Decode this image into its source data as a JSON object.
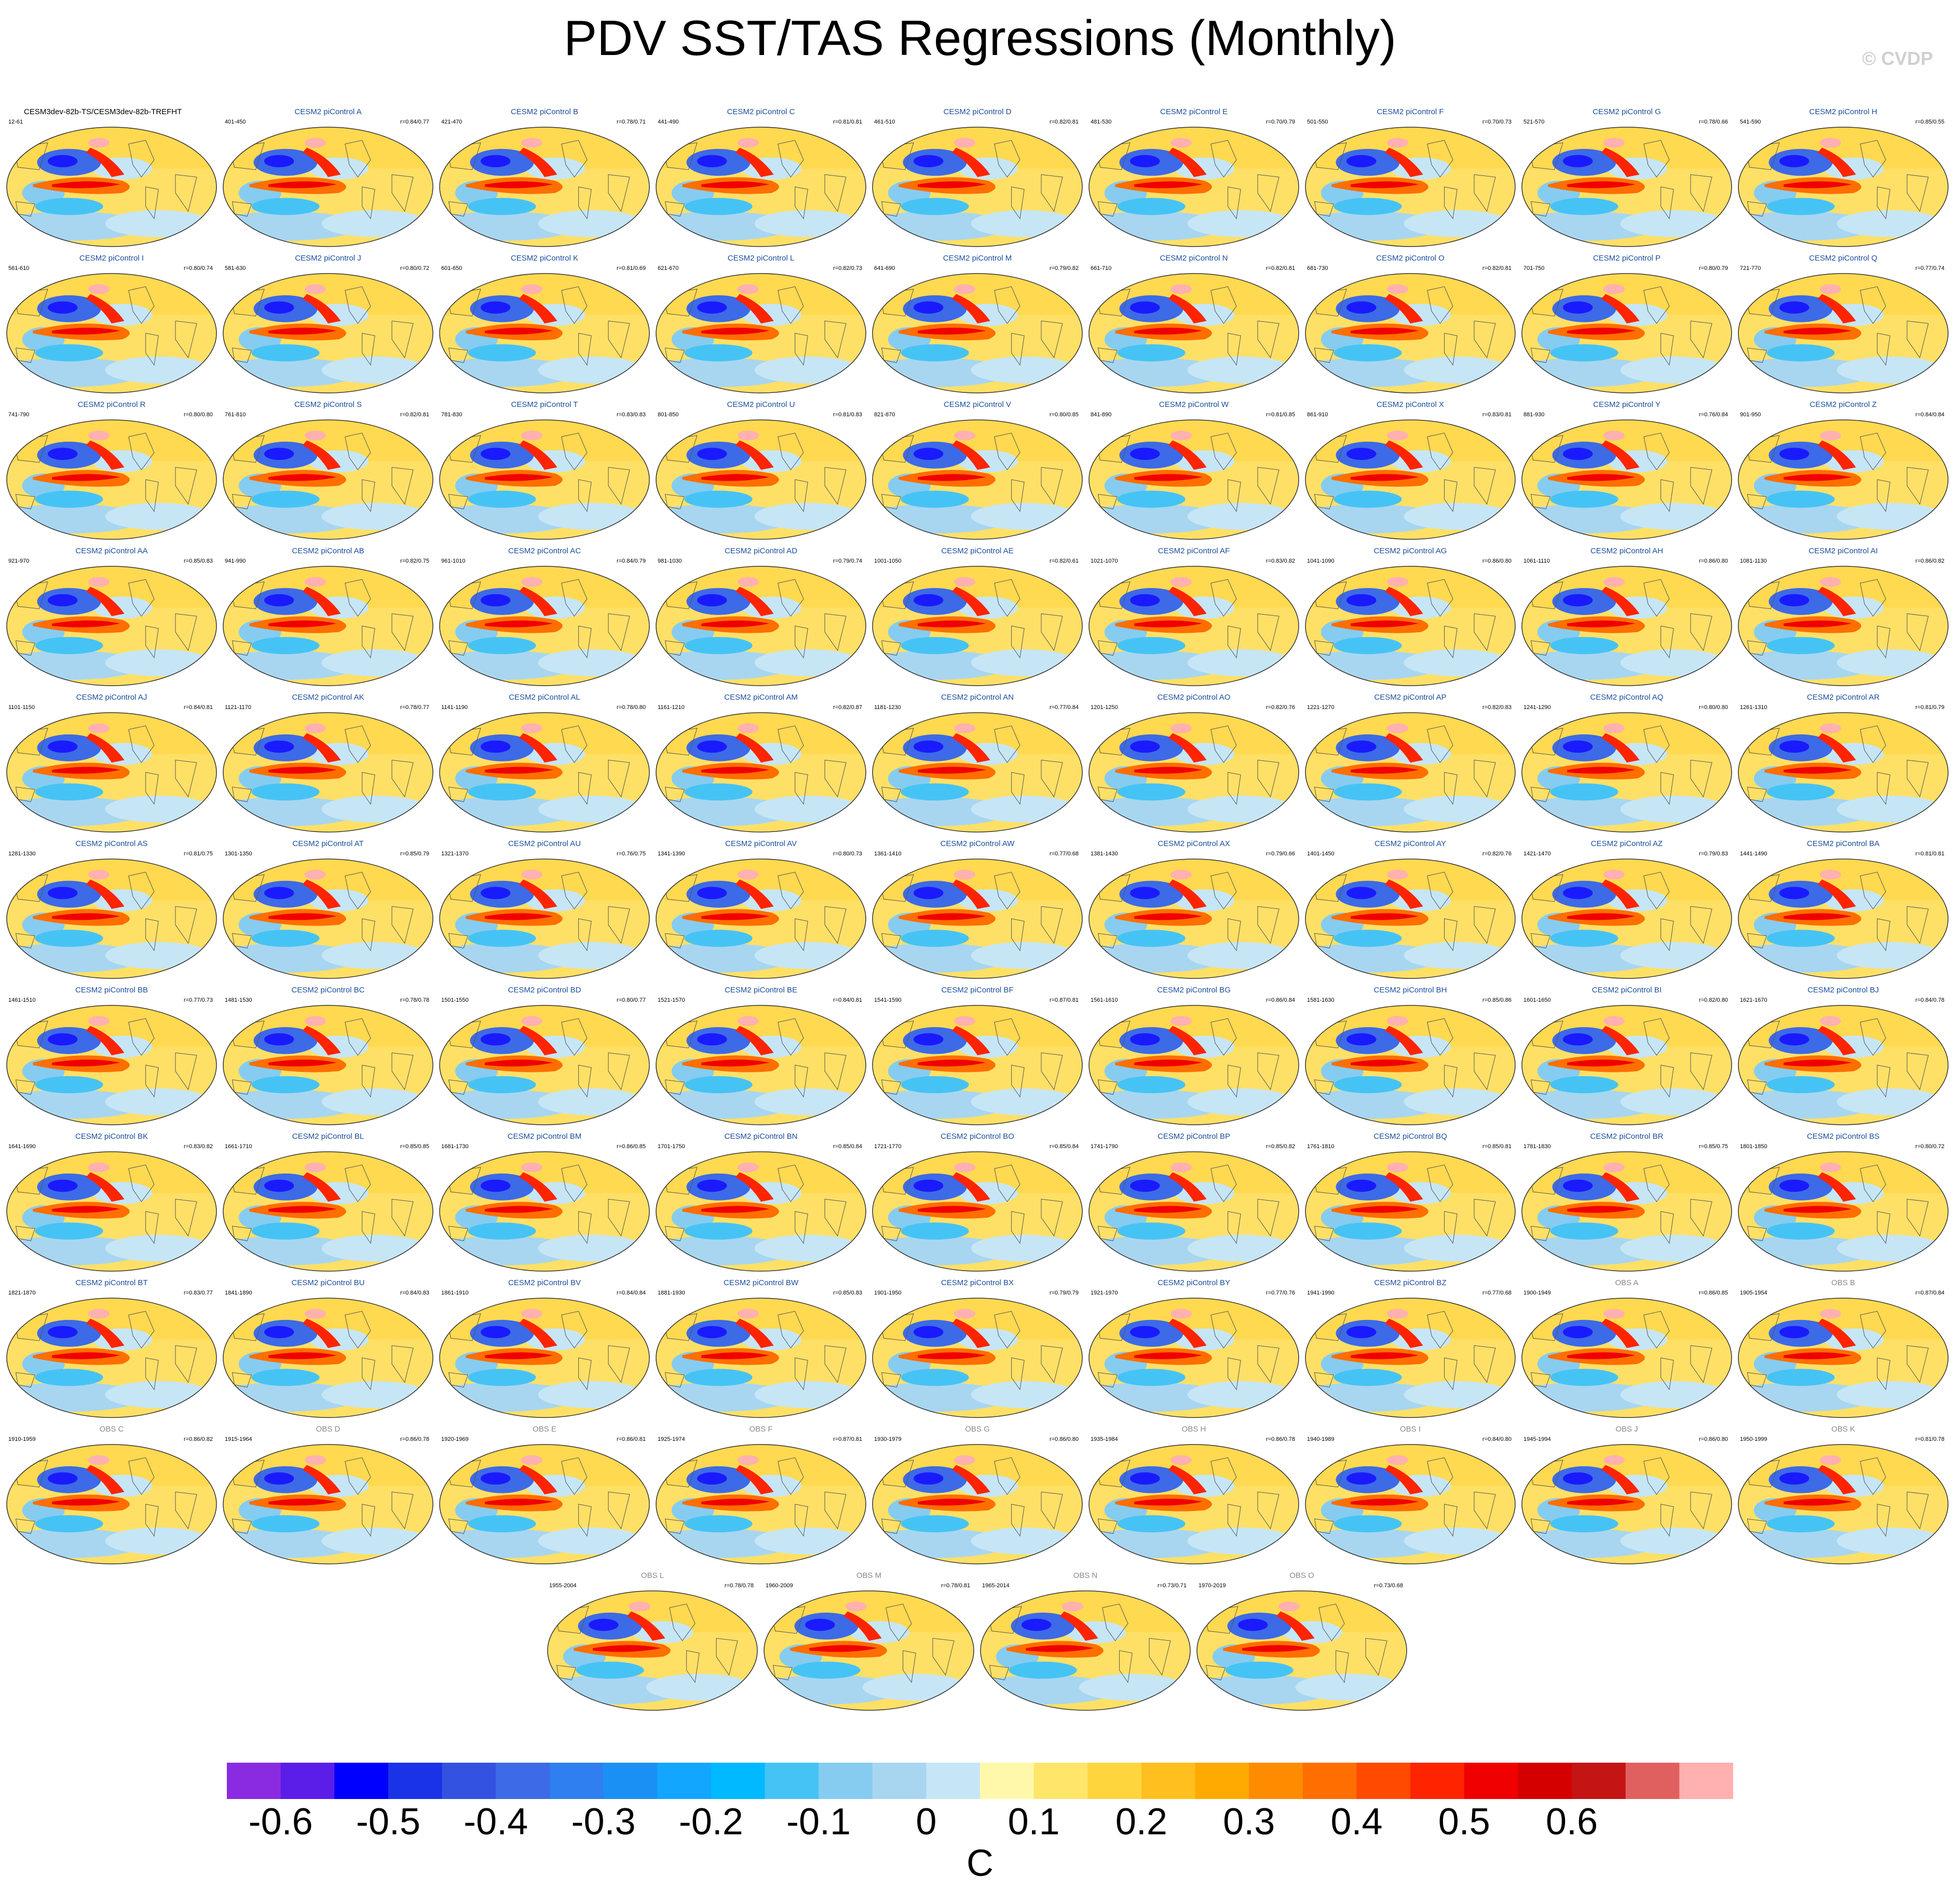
{
  "title": "PDV SST/TAS Regressions (Monthly)",
  "watermark": "© CVDP",
  "units": "C",
  "colorbar": {
    "colors": [
      "#8a2be2",
      "#5a1ee8",
      "#0000ff",
      "#1a33e6",
      "#3352e0",
      "#3d6ae6",
      "#2f7ff0",
      "#1a90f5",
      "#12a6ff",
      "#00b9ff",
      "#46c3f5",
      "#86ccf0",
      "#a8d6f0",
      "#c6e6f6",
      "#fff8aa",
      "#ffe66b",
      "#ffd53e",
      "#ffbf1e",
      "#ffaa00",
      "#ff8c00",
      "#ff6e00",
      "#ff4a00",
      "#ff2400",
      "#f00000",
      "#d40000",
      "#c41414",
      "#e06060",
      "#ffb0b0"
    ],
    "ticks": [
      "-0.6",
      "-0.5",
      "-0.4",
      "-0.3",
      "-0.2",
      "-0.1",
      "0",
      "0.1",
      "0.2",
      "0.3",
      "0.4",
      "0.5",
      "0.6"
    ]
  },
  "panels": [
    {
      "title": "CESM3dev-82b-TS/CESM3dev-82b-TREFHT",
      "years": "12-61",
      "corr": ""
    },
    {
      "title": "CESM2 piControl A",
      "years": "401-450",
      "corr": "r=0.84/0.77"
    },
    {
      "title": "CESM2 piControl B",
      "years": "421-470",
      "corr": "r=0.78/0.71"
    },
    {
      "title": "CESM2 piControl C",
      "years": "441-490",
      "corr": "r=0.81/0.81"
    },
    {
      "title": "CESM2 piControl D",
      "years": "461-510",
      "corr": "r=0.82/0.81"
    },
    {
      "title": "CESM2 piControl E",
      "years": "481-530",
      "corr": "r=0.70/0.79"
    },
    {
      "title": "CESM2 piControl F",
      "years": "501-550",
      "corr": "r=0.70/0.73"
    },
    {
      "title": "CESM2 piControl G",
      "years": "521-570",
      "corr": "r=0.78/0.66"
    },
    {
      "title": "CESM2 piControl H",
      "years": "541-590",
      "corr": "r=0.85/0.55"
    },
    {
      "title": "CESM2 piControl I",
      "years": "561-610",
      "corr": "r=0.80/0.74"
    },
    {
      "title": "CESM2 piControl J",
      "years": "581-630",
      "corr": "r=0.80/0.72"
    },
    {
      "title": "CESM2 piControl K",
      "years": "601-650",
      "corr": "r=0.81/0.69"
    },
    {
      "title": "CESM2 piControl L",
      "years": "621-670",
      "corr": "r=0.82/0.73"
    },
    {
      "title": "CESM2 piControl M",
      "years": "641-690",
      "corr": "r=0.79/0.82"
    },
    {
      "title": "CESM2 piControl N",
      "years": "661-710",
      "corr": "r=0.82/0.81"
    },
    {
      "title": "CESM2 piControl O",
      "years": "681-730",
      "corr": "r=0.82/0.81"
    },
    {
      "title": "CESM2 piControl P",
      "years": "701-750",
      "corr": "r=0.80/0.79"
    },
    {
      "title": "CESM2 piControl Q",
      "years": "721-770",
      "corr": "r=0.77/0.74"
    },
    {
      "title": "CESM2 piControl R",
      "years": "741-790",
      "corr": "r=0.80/0.80"
    },
    {
      "title": "CESM2 piControl S",
      "years": "761-810",
      "corr": "r=0.82/0.81"
    },
    {
      "title": "CESM2 piControl T",
      "years": "781-830",
      "corr": "r=0.83/0.83"
    },
    {
      "title": "CESM2 piControl U",
      "years": "801-850",
      "corr": "r=0.81/0.83"
    },
    {
      "title": "CESM2 piControl V",
      "years": "821-870",
      "corr": "r=0.80/0.85"
    },
    {
      "title": "CESM2 piControl W",
      "years": "841-890",
      "corr": "r=0.81/0.85"
    },
    {
      "title": "CESM2 piControl X",
      "years": "861-910",
      "corr": "r=0.83/0.81"
    },
    {
      "title": "CESM2 piControl Y",
      "years": "881-930",
      "corr": "r=0.76/0.84"
    },
    {
      "title": "CESM2 piControl Z",
      "years": "901-950",
      "corr": "r=0.84/0.84"
    },
    {
      "title": "CESM2 piControl AA",
      "years": "921-970",
      "corr": "r=0.85/0.83"
    },
    {
      "title": "CESM2 piControl AB",
      "years": "941-990",
      "corr": "r=0.82/0.75"
    },
    {
      "title": "CESM2 piControl AC",
      "years": "961-1010",
      "corr": "r=0.84/0.79"
    },
    {
      "title": "CESM2 piControl AD",
      "years": "981-1030",
      "corr": "r=0.79/0.74"
    },
    {
      "title": "CESM2 piControl AE",
      "years": "1001-1050",
      "corr": "r=0.82/0.61"
    },
    {
      "title": "CESM2 piControl AF",
      "years": "1021-1070",
      "corr": "r=0.83/0.82"
    },
    {
      "title": "CESM2 piControl AG",
      "years": "1041-1090",
      "corr": "r=0.86/0.80"
    },
    {
      "title": "CESM2 piControl AH",
      "years": "1061-1110",
      "corr": "r=0.86/0.80"
    },
    {
      "title": "CESM2 piControl AI",
      "years": "1081-1130",
      "corr": "r=0.86/0.82"
    },
    {
      "title": "CESM2 piControl AJ",
      "years": "1101-1150",
      "corr": "r=0.84/0.81"
    },
    {
      "title": "CESM2 piControl AK",
      "years": "1121-1170",
      "corr": "r=0.78/0.77"
    },
    {
      "title": "CESM2 piControl AL",
      "years": "1141-1190",
      "corr": "r=0.78/0.80"
    },
    {
      "title": "CESM2 piControl AM",
      "years": "1161-1210",
      "corr": "r=0.82/0.87"
    },
    {
      "title": "CESM2 piControl AN",
      "years": "1181-1230",
      "corr": "r=0.77/0.84"
    },
    {
      "title": "CESM2 piControl AO",
      "years": "1201-1250",
      "corr": "r=0.82/0.76"
    },
    {
      "title": "CESM2 piControl AP",
      "years": "1221-1270",
      "corr": "r=0.82/0.83"
    },
    {
      "title": "CESM2 piControl AQ",
      "years": "1241-1290",
      "corr": "r=0.80/0.80"
    },
    {
      "title": "CESM2 piControl AR",
      "years": "1261-1310",
      "corr": "r=0.81/0.79"
    },
    {
      "title": "CESM2 piControl AS",
      "years": "1281-1330",
      "corr": "r=0.81/0.75"
    },
    {
      "title": "CESM2 piControl AT",
      "years": "1301-1350",
      "corr": "r=0.85/0.79"
    },
    {
      "title": "CESM2 piControl AU",
      "years": "1321-1370",
      "corr": "r=0.76/0.75"
    },
    {
      "title": "CESM2 piControl AV",
      "years": "1341-1390",
      "corr": "r=0.80/0.73"
    },
    {
      "title": "CESM2 piControl AW",
      "years": "1361-1410",
      "corr": "r=0.77/0.68"
    },
    {
      "title": "CESM2 piControl AX",
      "years": "1381-1430",
      "corr": "r=0.79/0.66"
    },
    {
      "title": "CESM2 piControl AY",
      "years": "1401-1450",
      "corr": "r=0.82/0.76"
    },
    {
      "title": "CESM2 piControl AZ",
      "years": "1421-1470",
      "corr": "r=0.79/0.83"
    },
    {
      "title": "CESM2 piControl BA",
      "years": "1441-1490",
      "corr": "r=0.81/0.81"
    },
    {
      "title": "CESM2 piControl BB",
      "years": "1461-1510",
      "corr": "r=0.77/0.73"
    },
    {
      "title": "CESM2 piControl BC",
      "years": "1481-1530",
      "corr": "r=0.78/0.78"
    },
    {
      "title": "CESM2 piControl BD",
      "years": "1501-1550",
      "corr": "r=0.80/0.77"
    },
    {
      "title": "CESM2 piControl BE",
      "years": "1521-1570",
      "corr": "r=0.84/0.81"
    },
    {
      "title": "CESM2 piControl BF",
      "years": "1541-1590",
      "corr": "r=0.87/0.81"
    },
    {
      "title": "CESM2 piControl BG",
      "years": "1561-1610",
      "corr": "r=0.86/0.84"
    },
    {
      "title": "CESM2 piControl BH",
      "years": "1581-1630",
      "corr": "r=0.85/0.86"
    },
    {
      "title": "CESM2 piControl BI",
      "years": "1601-1650",
      "corr": "r=0.82/0.80"
    },
    {
      "title": "CESM2 piControl BJ",
      "years": "1621-1670",
      "corr": "r=0.84/0.78"
    },
    {
      "title": "CESM2 piControl BK",
      "years": "1641-1690",
      "corr": "r=0.83/0.82"
    },
    {
      "title": "CESM2 piControl BL",
      "years": "1661-1710",
      "corr": "r=0.85/0.85"
    },
    {
      "title": "CESM2 piControl BM",
      "years": "1681-1730",
      "corr": "r=0.86/0.85"
    },
    {
      "title": "CESM2 piControl BN",
      "years": "1701-1750",
      "corr": "r=0.85/0.84"
    },
    {
      "title": "CESM2 piControl BO",
      "years": "1721-1770",
      "corr": "r=0.85/0.84"
    },
    {
      "title": "CESM2 piControl BP",
      "years": "1741-1790",
      "corr": "r=0.85/0.82"
    },
    {
      "title": "CESM2 piControl BQ",
      "years": "1761-1810",
      "corr": "r=0.85/0.81"
    },
    {
      "title": "CESM2 piControl BR",
      "years": "1781-1830",
      "corr": "r=0.85/0.75"
    },
    {
      "title": "CESM2 piControl BS",
      "years": "1801-1850",
      "corr": "r=0.80/0.72"
    },
    {
      "title": "CESM2 piControl BT",
      "years": "1821-1870",
      "corr": "r=0.83/0.77"
    },
    {
      "title": "CESM2 piControl BU",
      "years": "1841-1890",
      "corr": "r=0.84/0.83"
    },
    {
      "title": "CESM2 piControl BV",
      "years": "1861-1910",
      "corr": "r=0.84/0.84"
    },
    {
      "title": "CESM2 piControl BW",
      "years": "1881-1930",
      "corr": "r=0.85/0.83"
    },
    {
      "title": "CESM2 piControl BX",
      "years": "1901-1950",
      "corr": "r=0.79/0.79"
    },
    {
      "title": "CESM2 piControl BY",
      "years": "1921-1970",
      "corr": "r=0.77/0.76"
    },
    {
      "title": "CESM2 piControl BZ",
      "years": "1941-1990",
      "corr": "r=0.77/0.68"
    },
    {
      "title": "OBS A",
      "years": "1900-1949",
      "corr": "r=0.86/0.85"
    },
    {
      "title": "OBS B",
      "years": "1905-1954",
      "corr": "r=0.87/0.84"
    },
    {
      "title": "OBS C",
      "years": "1910-1959",
      "corr": "r=0.86/0.82"
    },
    {
      "title": "OBS D",
      "years": "1915-1964",
      "corr": "r=0.86/0.78"
    },
    {
      "title": "OBS E",
      "years": "1920-1969",
      "corr": "r=0.86/0.81"
    },
    {
      "title": "OBS F",
      "years": "1925-1974",
      "corr": "r=0.87/0.81"
    },
    {
      "title": "OBS G",
      "years": "1930-1979",
      "corr": "r=0.86/0.80"
    },
    {
      "title": "OBS H",
      "years": "1935-1984",
      "corr": "r=0.86/0.78"
    },
    {
      "title": "OBS I",
      "years": "1940-1989",
      "corr": "r=0.84/0.80"
    },
    {
      "title": "OBS J",
      "years": "1945-1994",
      "corr": "r=0.86/0.80"
    },
    {
      "title": "OBS K",
      "years": "1950-1999",
      "corr": "r=0.81/0.78"
    },
    {
      "title": "OBS L",
      "years": "1955-2004",
      "corr": "r=0.78/0.78"
    },
    {
      "title": "OBS M",
      "years": "1960-2009",
      "corr": "r=0.78/0.81"
    },
    {
      "title": "OBS N",
      "years": "1965-2014",
      "corr": "r=0.73/0.71"
    },
    {
      "title": "OBS O",
      "years": "1970-2019",
      "corr": "r=0.73/0.68"
    }
  ]
}
